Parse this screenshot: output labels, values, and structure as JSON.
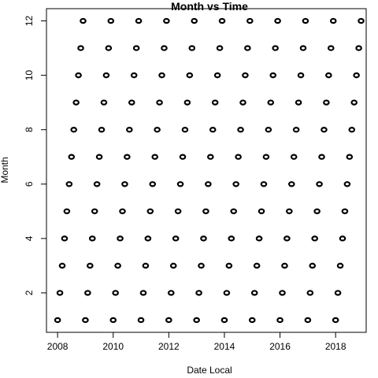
{
  "chart_data": {
    "type": "scatter",
    "title": "Month vs Time",
    "xlabel": "Date Local",
    "ylabel": "Month",
    "x_ticks": [
      2008,
      2010,
      2012,
      2014,
      2016,
      2018
    ],
    "y_ticks": [
      2,
      4,
      6,
      8,
      10,
      12
    ],
    "xlim": [
      2007.6,
      2019.1
    ],
    "ylim": [
      0.55,
      12.45
    ],
    "marker": "open-circle",
    "grid": false,
    "point_color": "#000000",
    "series": [
      {
        "x_years": [
          2008,
          2009,
          2010,
          2011,
          2012,
          2013,
          2014,
          2015,
          2016,
          2017,
          2018
        ],
        "months": [
          1,
          2,
          3,
          4,
          5,
          6,
          7,
          8,
          9,
          10,
          11,
          12
        ],
        "points": "one observation per month from Jan 2008 to Dec 2018"
      }
    ]
  }
}
